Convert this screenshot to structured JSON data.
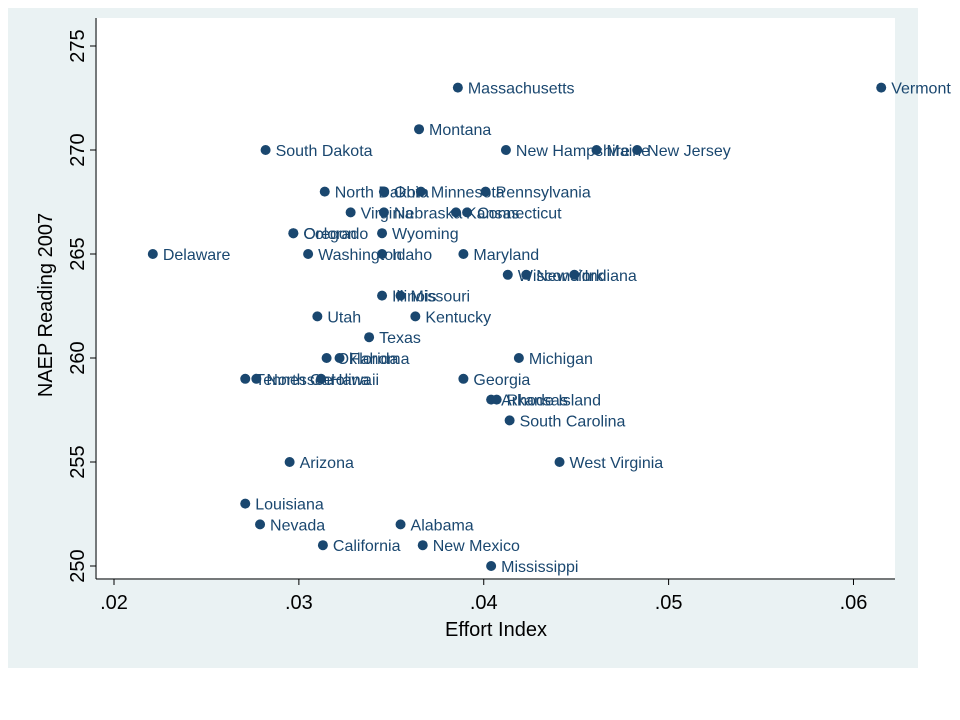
{
  "chart_data": {
    "type": "scatter",
    "title": "",
    "xlabel": "Effort Index",
    "ylabel": "NAEP Reading 2007",
    "xlim": [
      0.0186,
      0.0623
    ],
    "ylim": [
      249,
      275.9
    ],
    "x_ticks": [
      0.02,
      0.03,
      0.04,
      0.05,
      0.06
    ],
    "x_tick_labels": [
      ".02",
      ".03",
      ".04",
      ".05",
      ".06"
    ],
    "y_ticks": [
      250,
      255,
      260,
      265,
      270,
      275
    ],
    "y_tick_labels": [
      "250",
      "255",
      "260",
      "265",
      "270",
      "275"
    ],
    "grid": false,
    "marker_color": "#1a476f",
    "points": [
      {
        "label": "Massachusetts",
        "x": 0.0386,
        "y": 273
      },
      {
        "label": "Vermont",
        "x": 0.0615,
        "y": 273
      },
      {
        "label": "Montana",
        "x": 0.0365,
        "y": 271
      },
      {
        "label": "South Dakota",
        "x": 0.0282,
        "y": 270
      },
      {
        "label": "New Hampshire",
        "x": 0.0412,
        "y": 270
      },
      {
        "label": "Maine",
        "x": 0.0461,
        "y": 270
      },
      {
        "label": "New Jersey",
        "x": 0.0483,
        "y": 270
      },
      {
        "label": "North Dakota",
        "x": 0.0314,
        "y": 268
      },
      {
        "label": "Ohio",
        "x": 0.0346,
        "y": 268
      },
      {
        "label": "Minnesota",
        "x": 0.0366,
        "y": 268
      },
      {
        "label": "Pennsylvania",
        "x": 0.0401,
        "y": 268
      },
      {
        "label": "Virginia",
        "x": 0.0328,
        "y": 267
      },
      {
        "label": "Nebraska",
        "x": 0.0346,
        "y": 267
      },
      {
        "label": "Kansas",
        "x": 0.0385,
        "y": 267
      },
      {
        "label": "Connecticut",
        "x": 0.0391,
        "y": 267
      },
      {
        "label": "Oregon",
        "x": 0.0297,
        "y": 266
      },
      {
        "label": "Colorado",
        "x": 0.0297,
        "y": 266
      },
      {
        "label": "Wyoming",
        "x": 0.0345,
        "y": 266
      },
      {
        "label": "Delaware",
        "x": 0.0221,
        "y": 265
      },
      {
        "label": "Washington",
        "x": 0.0305,
        "y": 265
      },
      {
        "label": "Idaho",
        "x": 0.0345,
        "y": 265
      },
      {
        "label": "Maryland",
        "x": 0.0389,
        "y": 265
      },
      {
        "label": "Wisconsin",
        "x": 0.0413,
        "y": 264
      },
      {
        "label": "New York",
        "x": 0.0423,
        "y": 264
      },
      {
        "label": "Indiana",
        "x": 0.0449,
        "y": 264
      },
      {
        "label": "Illinois",
        "x": 0.0345,
        "y": 263
      },
      {
        "label": "Missouri",
        "x": 0.0355,
        "y": 263
      },
      {
        "label": "Utah",
        "x": 0.031,
        "y": 262
      },
      {
        "label": "Kentucky",
        "x": 0.0363,
        "y": 262
      },
      {
        "label": "Texas",
        "x": 0.0338,
        "y": 261
      },
      {
        "label": "Oklahoma",
        "x": 0.0315,
        "y": 260
      },
      {
        "label": "Florida",
        "x": 0.0322,
        "y": 260
      },
      {
        "label": "Michigan",
        "x": 0.0419,
        "y": 260
      },
      {
        "label": "Tennessee",
        "x": 0.0271,
        "y": 259
      },
      {
        "label": "North Carolina",
        "x": 0.0277,
        "y": 259
      },
      {
        "label": "Hawaii",
        "x": 0.0312,
        "y": 259
      },
      {
        "label": "Georgia",
        "x": 0.0389,
        "y": 259
      },
      {
        "label": "Arkansas",
        "x": 0.0404,
        "y": 258
      },
      {
        "label": "Rhode Island",
        "x": 0.0407,
        "y": 258
      },
      {
        "label": "South Carolina",
        "x": 0.0414,
        "y": 257
      },
      {
        "label": "Arizona",
        "x": 0.0295,
        "y": 255
      },
      {
        "label": "West Virginia",
        "x": 0.0441,
        "y": 255
      },
      {
        "label": "Louisiana",
        "x": 0.0271,
        "y": 253
      },
      {
        "label": "Nevada",
        "x": 0.0279,
        "y": 252
      },
      {
        "label": "Alabama",
        "x": 0.0355,
        "y": 252
      },
      {
        "label": "California",
        "x": 0.0313,
        "y": 251
      },
      {
        "label": "New Mexico",
        "x": 0.0367,
        "y": 251
      },
      {
        "label": "Mississippi",
        "x": 0.0404,
        "y": 250
      }
    ]
  }
}
